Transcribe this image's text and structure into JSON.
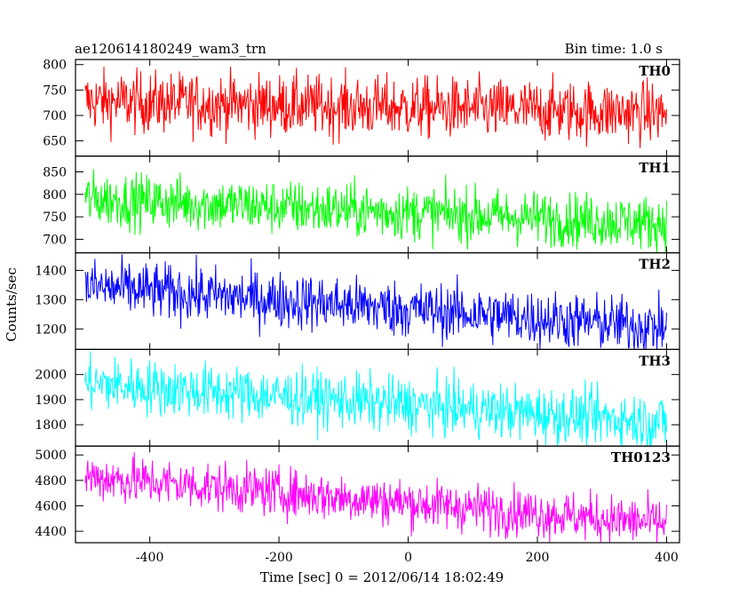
{
  "chart_data": {
    "type": "line",
    "title": "ae120614180249_wam3_trn",
    "bin_time_label": "Bin time: 1.0 s",
    "xlabel": "Time [sec] 0 = 2012/06/14 18:02:49",
    "ylabel": "Counts/sec",
    "xlim": [
      -515,
      420
    ],
    "x_ticks": [
      -400,
      -200,
      0,
      200,
      400
    ],
    "x_range": [
      -500,
      400
    ],
    "panels": [
      {
        "name": "TH0",
        "color": "#ff0000",
        "ylim": [
          620,
          810
        ],
        "y_ticks": [
          650,
          700,
          750,
          800
        ],
        "start_mean": 728,
        "end_mean": 705,
        "noise": 30
      },
      {
        "name": "TH1",
        "color": "#00ff00",
        "ylim": [
          670,
          885
        ],
        "y_ticks": [
          700,
          750,
          800,
          850
        ],
        "start_mean": 790,
        "end_mean": 735,
        "noise": 30
      },
      {
        "name": "TH2",
        "color": "#0000ff",
        "ylim": [
          1130,
          1460
        ],
        "y_ticks": [
          1200,
          1300,
          1400
        ],
        "start_mean": 1345,
        "end_mean": 1205,
        "noise": 48
      },
      {
        "name": "TH3",
        "color": "#00ffff",
        "ylim": [
          1715,
          2100
        ],
        "y_ticks": [
          1800,
          1900,
          2000
        ],
        "start_mean": 1965,
        "end_mean": 1810,
        "noise": 55
      },
      {
        "name": "TH0123",
        "color": "#ff00ff",
        "ylim": [
          4310,
          5070
        ],
        "y_ticks": [
          4400,
          4600,
          4800,
          5000
        ],
        "start_mean": 4830,
        "end_mean": 4460,
        "noise": 95
      }
    ]
  }
}
